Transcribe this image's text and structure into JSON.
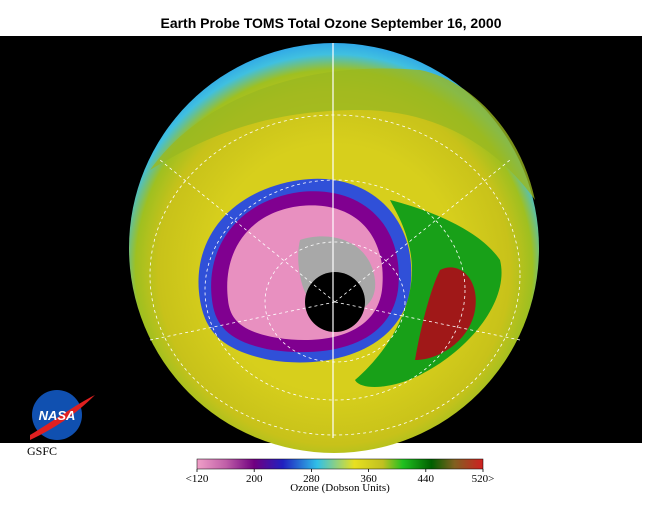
{
  "title": "Earth Probe TOMS Total Ozone September 16, 2000",
  "colorbar": {
    "label": "Ozone (Dobson Units)",
    "lim": [
      120,
      520
    ],
    "ticks": [
      {
        "value": 120,
        "label": "<120"
      },
      200,
      280,
      360,
      440,
      {
        "value": 520,
        "label": "520>"
      }
    ]
  },
  "logo": "NASA",
  "credit": "GSFC"
}
